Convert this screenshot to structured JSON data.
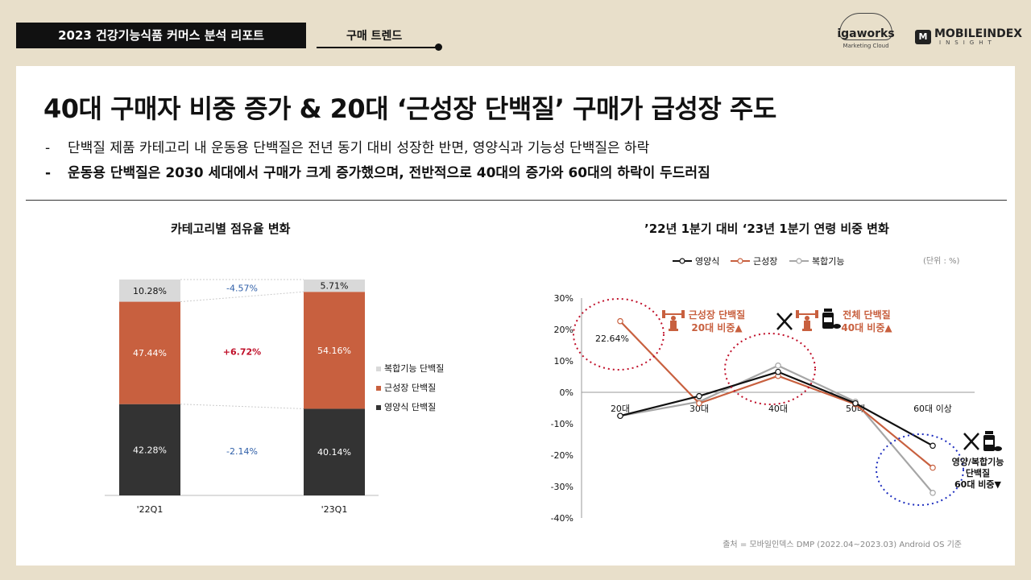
{
  "header": {
    "report_title": "2023 건강기능식품 커머스 분석 리포트",
    "tab_label": "구매 트렌드",
    "logo_left": {
      "brand": "igaworks",
      "sub": "Marketing Cloud"
    },
    "logo_right": {
      "mark": "M",
      "brand": "MOBILEINDEX",
      "sub": "INSIGHT"
    }
  },
  "main": {
    "headline": "40대 구매자 비중 증가 & 20대 ‘근성장 단백질’ 구매가 급성장 주도",
    "bullets": [
      {
        "dash": "-",
        "text": "단백질 제품 카테고리 내 운동용 단백질은 전년 동기 대비 성장한 반면, 영양식과 기능성 단백질은 하락"
      },
      {
        "dash": "-",
        "text": "운동용 단백질은 2030 세대에서 구매가 크게 증가했으며, 전반적으로 40대의 증가와 60대의 하락이 두드러짐"
      }
    ],
    "source": "출처 = 모바일인덱스 DMP (2022.04~2023.03) Android OS 기준"
  },
  "chart_data": [
    {
      "type": "bar",
      "stacked": true,
      "title": "카테고리별 점유율 변화",
      "categories": [
        "'22Q1",
        "'23Q1"
      ],
      "series": [
        {
          "name": "영양식 단백질",
          "values": [
            42.28,
            40.14
          ],
          "labels": [
            "42.28%",
            "40.14%"
          ],
          "color": "#333333"
        },
        {
          "name": "근성장 단백질",
          "values": [
            47.44,
            54.16
          ],
          "labels": [
            "47.44%",
            "54.16%"
          ],
          "color": "#c8603f"
        },
        {
          "name": "복합기능 단백질",
          "values": [
            10.28,
            5.71
          ],
          "labels": [
            "10.28%",
            "5.71%"
          ],
          "color": "#d9d9d9"
        }
      ],
      "changes": [
        {
          "series": "영양식 단백질",
          "label": "-2.14%",
          "color": "#2f5fa8"
        },
        {
          "series": "근성장 단백질",
          "label": "+6.72%",
          "color": "#c0102a"
        },
        {
          "series": "복합기능 단백질",
          "label": "-4.57%",
          "color": "#2f5fa8"
        }
      ],
      "legend_position": "right",
      "ylim": [
        0,
        100
      ]
    },
    {
      "type": "line",
      "title": "’22년 1분기 대비 ‘23년 1분기 연령 비중 변화",
      "unit_note": "(단위 : %)",
      "categories": [
        "20대",
        "30대",
        "40대",
        "50대",
        "60대 이상"
      ],
      "series": [
        {
          "name": "영양식",
          "values": [
            -7.5,
            -1.2,
            6.5,
            -3.5,
            -17
          ],
          "color": "#111111"
        },
        {
          "name": "근성장",
          "values": [
            22.64,
            -3.5,
            5.2,
            -3.8,
            -24
          ],
          "color": "#c8603f"
        },
        {
          "name": "복합기능",
          "values": [
            -7.5,
            -3,
            8.5,
            -3,
            -32
          ],
          "color": "#a6a6a6"
        }
      ],
      "y_ticks": [
        "30%",
        "20%",
        "10%",
        "0%",
        "-10%",
        "-20%",
        "-30%",
        "-40%"
      ],
      "ylim": [
        -40,
        30
      ],
      "data_label": "22.64%",
      "legend_position": "top",
      "annotations": [
        {
          "lines": [
            "근성장 단백질",
            "20대 비중▲"
          ],
          "color": "#c8603f"
        },
        {
          "lines": [
            "전체 단백질",
            "40대 비중▲"
          ],
          "color": "#c8603f"
        },
        {
          "lines": [
            "영양/복합기능",
            "단백질",
            "60대 비중▼"
          ],
          "color": "#111111"
        }
      ]
    }
  ]
}
